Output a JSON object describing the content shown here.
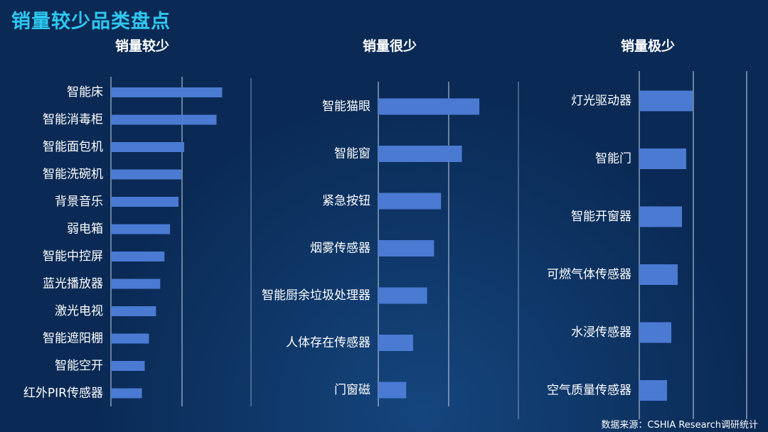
{
  "page": {
    "title": "销量较少品类盘点",
    "source": "数据来源：CSHIA Research调研统计"
  },
  "colors": {
    "bar": "#4a7ad2",
    "grid": "#c9d6e8",
    "title": "#2ec8f0",
    "divider": "#7f9bbf"
  },
  "chart_data": [
    {
      "type": "bar",
      "orientation": "horizontal",
      "title": "销量较少",
      "categories": [
        "智能床",
        "智能消毒柜",
        "智能面包机",
        "智能洗碗机",
        "背景音乐",
        "弱电箱",
        "智能中控屏",
        "蓝光播放器",
        "激光电视",
        "智能遮阳棚",
        "智能空开",
        "红外PIR传感器"
      ],
      "values": [
        7.9,
        7.5,
        5.2,
        5.0,
        4.8,
        4.2,
        3.8,
        3.5,
        3.2,
        2.7,
        2.4,
        2.2
      ],
      "xlim": [
        0,
        15
      ],
      "grid": true
    },
    {
      "type": "bar",
      "orientation": "horizontal",
      "title": "销量很少",
      "categories": [
        "智能猫眼",
        "智能窗",
        "紧急按钮",
        "烟雾传感器",
        "智能厨余垃圾处理器",
        "人体存在传感器",
        "门窗磁"
      ],
      "values": [
        1.45,
        1.2,
        0.9,
        0.8,
        0.7,
        0.5,
        0.4
      ],
      "xlim": [
        0,
        2
      ],
      "grid": true
    },
    {
      "type": "bar",
      "orientation": "horizontal",
      "title": "销量极少",
      "categories": [
        "灯光驱动器",
        "智能门",
        "智能开窗器",
        "可燃气体传感器",
        "水浸传感器",
        "空气质量传感器"
      ],
      "values": [
        0.25,
        0.22,
        0.2,
        0.18,
        0.15,
        0.13
      ],
      "xlim": [
        0,
        0.5
      ],
      "grid": true
    }
  ]
}
